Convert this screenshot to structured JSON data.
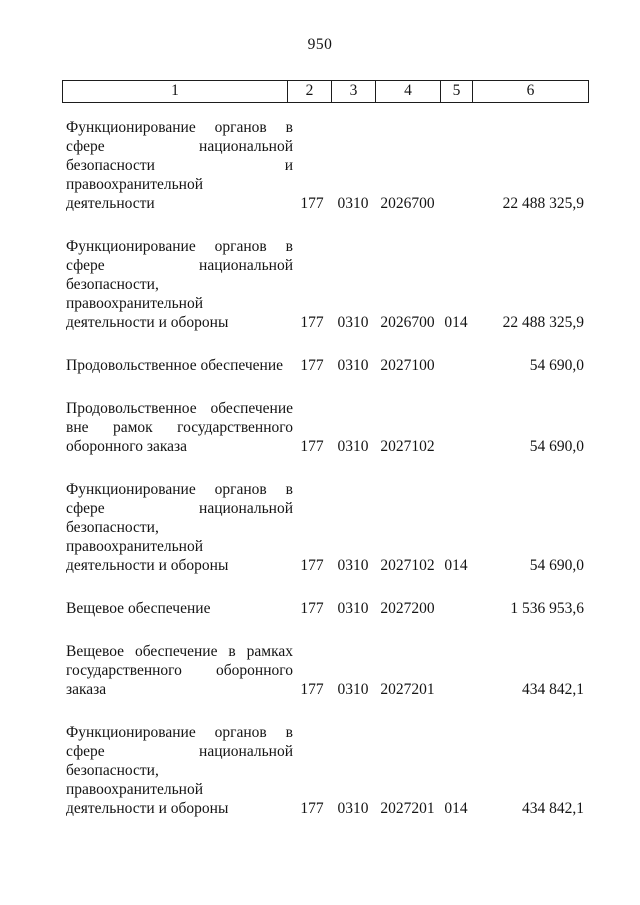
{
  "page": {
    "number": "950"
  },
  "table": {
    "header_labels": [
      "1",
      "2",
      "3",
      "4",
      "5",
      "6"
    ],
    "rows": [
      {
        "name_lines": [
          "Функционирование органов в",
          "сфере национальной",
          "безопасности и",
          "правоохранительной",
          "деятельности"
        ],
        "code_gl": "177",
        "code_section": "0310",
        "code_target": "2026700",
        "code_type": "",
        "amount": "22 488 325,9"
      },
      {
        "name_lines": [
          "Функционирование органов в",
          "сфере национальной",
          "безопасности,",
          "правоохранительной",
          "деятельности и обороны"
        ],
        "code_gl": "177",
        "code_section": "0310",
        "code_target": "2026700",
        "code_type": "014",
        "amount": "22 488 325,9"
      },
      {
        "name_lines": [
          "Продовольственное обеспечение"
        ],
        "code_gl": "177",
        "code_section": "0310",
        "code_target": "2027100",
        "code_type": "",
        "amount": "54 690,0"
      },
      {
        "name_lines": [
          "Продовольственное обеспечение",
          "вне рамок государственного",
          "оборонного заказа"
        ],
        "code_gl": "177",
        "code_section": "0310",
        "code_target": "2027102",
        "code_type": "",
        "amount": "54 690,0"
      },
      {
        "name_lines": [
          "Функционирование органов в",
          "сфере национальной",
          "безопасности,",
          "правоохранительной",
          "деятельности и обороны"
        ],
        "code_gl": "177",
        "code_section": "0310",
        "code_target": "2027102",
        "code_type": "014",
        "amount": "54 690,0"
      },
      {
        "name_lines": [
          "Вещевое обеспечение"
        ],
        "code_gl": "177",
        "code_section": "0310",
        "code_target": "2027200",
        "code_type": "",
        "amount": "1 536 953,6"
      },
      {
        "name_lines": [
          "Вещевое обеспечение в рамках",
          "государственного оборонного",
          "заказа"
        ],
        "code_gl": "177",
        "code_section": "0310",
        "code_target": "2027201",
        "code_type": "",
        "amount": "434 842,1"
      },
      {
        "name_lines": [
          "Функционирование органов в",
          "сфере национальной",
          "безопасности,",
          "правоохранительной",
          "деятельности и обороны"
        ],
        "code_gl": "177",
        "code_section": "0310",
        "code_target": "2027201",
        "code_type": "014",
        "amount": "434 842,1"
      }
    ]
  }
}
